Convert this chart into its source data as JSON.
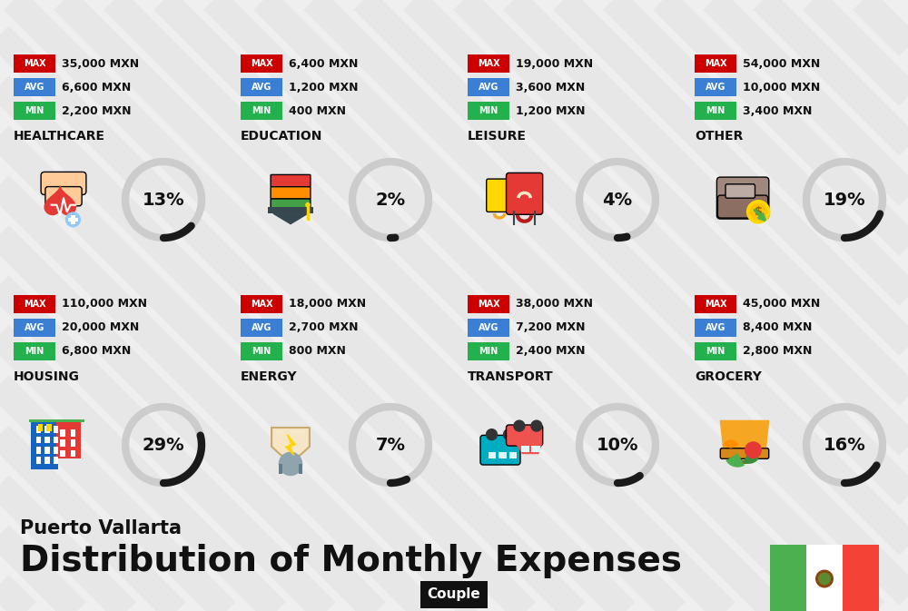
{
  "title": "Distribution of Monthly Expenses",
  "subtitle": "Puerto Vallarta",
  "badge": "Couple",
  "bg_color": "#efefef",
  "categories": [
    {
      "name": "HOUSING",
      "pct": 29,
      "min": "6,800 MXN",
      "avg": "20,000 MXN",
      "max": "110,000 MXN",
      "row": 0,
      "col": 0
    },
    {
      "name": "ENERGY",
      "pct": 7,
      "min": "800 MXN",
      "avg": "2,700 MXN",
      "max": "18,000 MXN",
      "row": 0,
      "col": 1
    },
    {
      "name": "TRANSPORT",
      "pct": 10,
      "min": "2,400 MXN",
      "avg": "7,200 MXN",
      "max": "38,000 MXN",
      "row": 0,
      "col": 2
    },
    {
      "name": "GROCERY",
      "pct": 16,
      "min": "2,800 MXN",
      "avg": "8,400 MXN",
      "max": "45,000 MXN",
      "row": 0,
      "col": 3
    },
    {
      "name": "HEALTHCARE",
      "pct": 13,
      "min": "2,200 MXN",
      "avg": "6,600 MXN",
      "max": "35,000 MXN",
      "row": 1,
      "col": 0
    },
    {
      "name": "EDUCATION",
      "pct": 2,
      "min": "400 MXN",
      "avg": "1,200 MXN",
      "max": "6,400 MXN",
      "row": 1,
      "col": 1
    },
    {
      "name": "LEISURE",
      "pct": 4,
      "min": "1,200 MXN",
      "avg": "3,600 MXN",
      "max": "19,000 MXN",
      "row": 1,
      "col": 2
    },
    {
      "name": "OTHER",
      "pct": 19,
      "min": "3,400 MXN",
      "avg": "10,000 MXN",
      "max": "54,000 MXN",
      "row": 1,
      "col": 3
    }
  ],
  "color_min": "#22b14c",
  "color_avg": "#3b7fd4",
  "color_max": "#cc0000",
  "color_text": "#111111",
  "color_badge_bg": "#111111",
  "color_badge_text": "#ffffff",
  "color_ring_active": "#1a1a1a",
  "color_ring_inactive": "#cccccc",
  "flag_green": "#4caf50",
  "flag_red": "#f44336",
  "stripe_color": "#e4e4e4",
  "stripe_alpha": 0.7
}
